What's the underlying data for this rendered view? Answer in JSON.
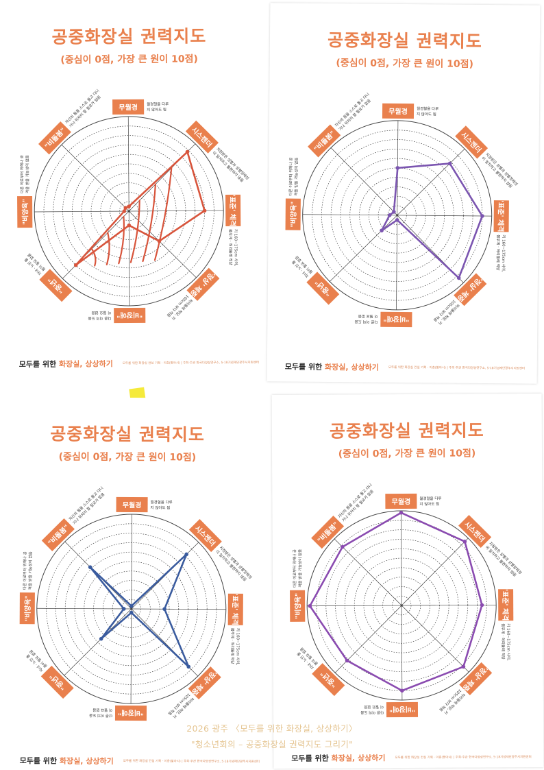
{
  "sheets": [
    {
      "title": "공중화장실 권력지도",
      "subtitle": "(중심이 0점, 가장 큰 원이 10점)",
      "brand_main": "모두를 위한 ",
      "brand_accent": "화장실, 상상하기",
      "credits": "모두를 위한 화장실 컨실 기획 · 이층(팔아시) | 주최·주관 한국다양성연구소, 5·18기념재단광주시지원센터"
    },
    {
      "title": "공중화장실 권력지도",
      "subtitle": "(중심이 0점, 가장 큰 원이 10점)",
      "brand_main": "모두를 위한 ",
      "brand_accent": "화장실, 상상하기",
      "credits": "모두를 위한 화장실 컨실 기획 · 이층(팔아시) | 주최·주관 한국다양성연구소, 5·18기념재단광주시지원센터"
    },
    {
      "title": "공중화장실 권력지도",
      "subtitle": "(중심이 0점, 가장 큰 원이 10점)",
      "brand_main": "모두를 위한 ",
      "brand_accent": "화장실, 상상하기",
      "credits": "모두를 위한 화장실 컨실 기획 · 이층(팔아시) | 주최·주관 한국다양성연구소, 5·18기념재단광주시지원센터"
    },
    {
      "title": "공중화장실 권력지도",
      "subtitle": "(중심이 0점, 가장 큰 원이 10점)",
      "brand_main": "모두를 위한 ",
      "brand_accent": "화장실, 상상하기",
      "credits": "모두를 위한 화장실 컨실 기획 · 이층(팔아시) | 주최·주관 한국다양성연구소, 5·18기념재단광주시지원센터"
    }
  ],
  "axes": [
    {
      "label": "무월경",
      "desc": "월경혈을 다루지 않아도 됨"
    },
    {
      "label": "시스젠더",
      "desc": "지정받은 성별과 성별정체성이 일치하고 불편하지 않음"
    },
    {
      "label": "'표준' 체격",
      "desc": "키 160~175cm 사이, 몸무게 · 허리둘레 적당"
    },
    {
      "label": "'정상' 체중",
      "desc": "허리둘레 적당, 키 105cm 보다 적음"
    },
    {
      "label": "\"비장애\"",
      "desc": "다른 이의 도움이 필요 없음"
    },
    {
      "label": "\"중년\"",
      "desc": "자녀 · 노인 돌봄이 필요 없음"
    },
    {
      "label": "\"비양육\"",
      "desc": "다른 이로부터 위해나 공격을 받을 가능성이 없음"
    },
    {
      "label": "\"비돌봄\"",
      "desc": "자신의 몸을 스스로 돌고 다니거나 뒤처리 할 필요가 없음"
    }
  ],
  "chart_data": [
    {
      "type": "radar",
      "title": "공중화장실 권력지도",
      "subtitle": "(중심이 0점, 가장 큰 원이 10점)",
      "rlim": [
        0,
        10
      ],
      "rings": 10,
      "categories": [
        "무월경",
        "시스젠더",
        "'표준' 체격",
        "'정상' 체중",
        "\"비장애\"",
        "\"중년\"",
        "\"비양육\"",
        "\"비돌봄\""
      ],
      "values": [
        0.5,
        8.8,
        8.0,
        4.5,
        1.5,
        8.0,
        0.5,
        0.5
      ],
      "color": "#d8553c",
      "hatched": true
    },
    {
      "type": "radar",
      "title": "공중화장실 권력지도",
      "subtitle": "(중심이 0점, 가장 큰 원이 10점)",
      "rlim": [
        0,
        10
      ],
      "rings": 10,
      "categories": [
        "무월경",
        "시스젠더",
        "'표준' 체격",
        "'정상' 체중",
        "\"비장애\"",
        "\"중년\"",
        "\"비양육\"",
        "\"비돌봄\""
      ],
      "values": [
        5.0,
        7.8,
        9.0,
        9.3,
        0.5,
        2.3,
        0.8,
        0.5
      ],
      "color": "#7b55b0",
      "hatched": false
    },
    {
      "type": "radar",
      "title": "공중화장실 권력지도",
      "subtitle": "(중심이 0점, 가장 큰 원이 10점)",
      "rlim": [
        0,
        10
      ],
      "rings": 10,
      "categories": [
        "무월경",
        "시스젠더",
        "'표준' 체격",
        "'정상' 체중",
        "\"비장애\"",
        "\"중년\"",
        "\"비양육\"",
        "\"비돌봄\""
      ],
      "values": [
        0.3,
        8.2,
        3.5,
        8.6,
        0.4,
        4.5,
        0.8,
        6.2
      ],
      "color": "#3a5b9e",
      "hatched": false
    },
    {
      "type": "radar",
      "title": "공중화장실 권력지도",
      "subtitle": "(중심이 0점, 가장 큰 원이 10점)",
      "rlim": [
        0,
        10
      ],
      "rings": 10,
      "categories": [
        "무월경",
        "시스젠더",
        "'표준' 체격",
        "'정상' 체중",
        "\"비장애\"",
        "\"중년\"",
        "\"비양육\"",
        "\"비돌봄\""
      ],
      "values": [
        9.8,
        9.5,
        8.5,
        9.2,
        9.0,
        8.2,
        9.7,
        8.8
      ],
      "color": "#8a4bb0",
      "hatched": false
    }
  ],
  "watermark": {
    "line1": "2026 광주 〈모두를 위한 화장실, 상상하기〉",
    "line2": "\"청소년회의 – 공중화장실 권력지도 그리기\""
  },
  "colors": {
    "accent": "#e9804d",
    "grid": "#444444"
  }
}
